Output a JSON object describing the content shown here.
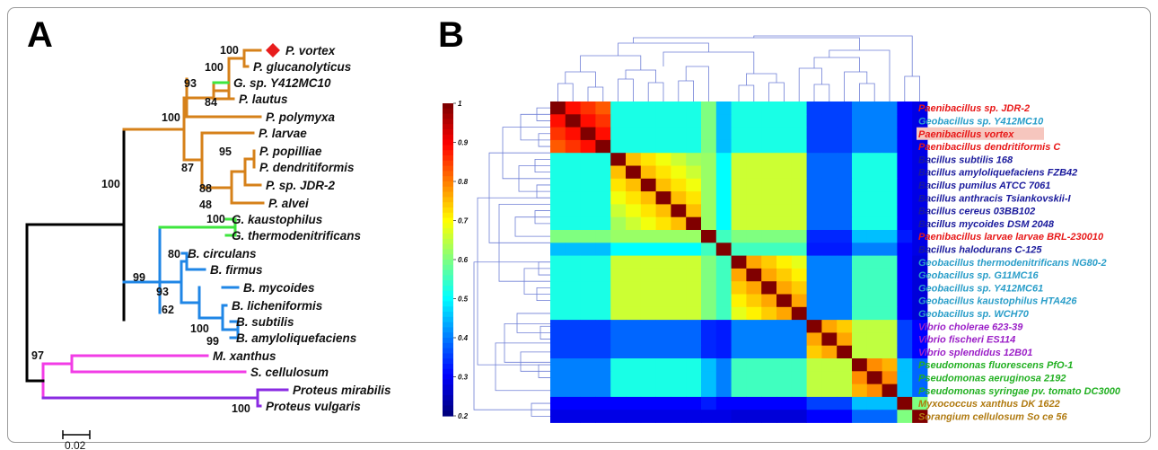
{
  "panels": {
    "a_label": "A",
    "b_label": "B"
  },
  "colors": {
    "orange": "#d6811a",
    "green": "#3ee63e",
    "blue": "#1f86e6",
    "black": "#000000",
    "magenta": "#f23ce6",
    "purple": "#8a2be2",
    "marker": "#e81d1d",
    "highlight": "#f6c6be",
    "strain_red": "#e81818",
    "strain_cyan": "#2a9ec9",
    "strain_navy": "#1a1a9c",
    "strain_purple": "#9b1fc7",
    "strain_green": "#22b022",
    "strain_brown": "#b07a10"
  },
  "tree": {
    "taxa": [
      {
        "label": "P. vortex",
        "marker": "diamond-icon"
      },
      {
        "label": "P. glucanolyticus"
      },
      {
        "label": "G. sp. Y412MC10"
      },
      {
        "label": "P. lautus"
      },
      {
        "label": "P. polymyxa"
      },
      {
        "label": "P. larvae"
      },
      {
        "label": "P. popilliae"
      },
      {
        "label": "P. dendritiformis"
      },
      {
        "label": "P. sp. JDR-2"
      },
      {
        "label": "P. alvei"
      },
      {
        "label": "G. kaustophilus"
      },
      {
        "label": "G. thermodenitrificans"
      },
      {
        "label": "B. circulans"
      },
      {
        "label": "B. firmus"
      },
      {
        "label": "B. mycoides"
      },
      {
        "label": "B. licheniformis"
      },
      {
        "label": "B. subtilis"
      },
      {
        "label": "B. amyloliquefaciens"
      },
      {
        "label": "M. xanthus"
      },
      {
        "label": "S. cellulosum"
      },
      {
        "label": "Proteus mirabilis"
      },
      {
        "label": "Proteus vulgaris"
      }
    ],
    "bootstrap": [
      "100",
      "100",
      "93",
      "84",
      "100",
      "95",
      "87",
      "88",
      "48",
      "100",
      "100",
      "80",
      "99",
      "93",
      "62",
      "100",
      "99",
      "97",
      "100"
    ],
    "scale_label": "0.02"
  },
  "heatmap": {
    "colorbar_ticks": [
      "1",
      "0.9",
      "0.8",
      "0.7",
      "0.6",
      "0.5",
      "0.4",
      "0.3",
      "0.2"
    ],
    "strains": [
      {
        "label": "Paenibacillus sp. JDR-2",
        "color": "strain_red"
      },
      {
        "label": "Geobacillus sp. Y412MC10",
        "color": "strain_cyan"
      },
      {
        "label": "Paenibacillus vortex",
        "color": "strain_red",
        "highlight": true
      },
      {
        "label": "Paenibacillus dendritiformis C",
        "color": "strain_red"
      },
      {
        "label": "Bacillus subtilis 168",
        "color": "strain_navy"
      },
      {
        "label": "Bacillus amyloliquefaciens FZB42",
        "color": "strain_navy"
      },
      {
        "label": "Bacillus pumilus ATCC 7061",
        "color": "strain_navy"
      },
      {
        "label": "Bacillus anthracis Tsiankovskii-I",
        "color": "strain_navy"
      },
      {
        "label": "Bacillus cereus 03BB102",
        "color": "strain_navy"
      },
      {
        "label": "Bacillus mycoides DSM 2048",
        "color": "strain_navy"
      },
      {
        "label": "Paenibacillus larvae larvae BRL-230010",
        "color": "strain_red"
      },
      {
        "label": "Bacillus halodurans C-125",
        "color": "strain_navy"
      },
      {
        "label": "Geobacillus thermodenitrificans NG80-2",
        "color": "strain_cyan"
      },
      {
        "label": "Geobacillus sp. G11MC16",
        "color": "strain_cyan"
      },
      {
        "label": "Geobacillus sp. Y412MC61",
        "color": "strain_cyan"
      },
      {
        "label": "Geobacillus kaustophilus HTA426",
        "color": "strain_cyan"
      },
      {
        "label": "Geobacillus sp. WCH70",
        "color": "strain_cyan"
      },
      {
        "label": "Vibrio cholerae 623-39",
        "color": "strain_purple"
      },
      {
        "label": "Vibrio fischeri ES114",
        "color": "strain_purple"
      },
      {
        "label": "Vibrio splendidus 12B01",
        "color": "strain_purple"
      },
      {
        "label": "Pseudomonas fluorescens PfO-1",
        "color": "strain_green"
      },
      {
        "label": "Pseudomonas aeruginosa 2192",
        "color": "strain_green"
      },
      {
        "label": "Pseudomonas syringae pv. tomato DC3000",
        "color": "strain_green"
      },
      {
        "label": "Myxococcus xanthus DK 1622",
        "color": "strain_brown"
      },
      {
        "label": "Sorangium cellulosum So ce 56",
        "color": "strain_brown"
      }
    ]
  }
}
